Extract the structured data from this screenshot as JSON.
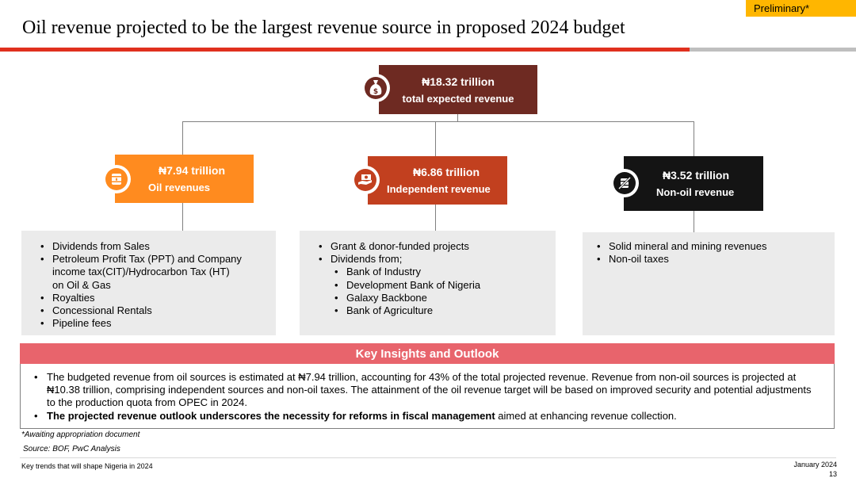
{
  "header": {
    "badge": "Preliminary*",
    "title": "Oil revenue projected to be the largest revenue source in proposed 2024 budget"
  },
  "colors": {
    "total": "#6E2A22",
    "oil": "#FF8B1F",
    "independent": "#C2401F",
    "non_oil": "#141414",
    "insight_header": "#E8646C",
    "accent_red": "#E0301E",
    "badge": "#FFB600"
  },
  "total": {
    "amount": "₦18.32 trillion",
    "label": "total expected revenue",
    "icon": "money-bag-icon"
  },
  "sources": [
    {
      "amount": "₦7.94 trillion",
      "label": "Oil revenues",
      "icon": "oil-barrel-icon",
      "details": [
        "Dividends from Sales",
        "Petroleum Profit Tax (PPT) and Company",
        "income tax(CIT)/Hydrocarbon Tax (HT)",
        "on Oil & Gas",
        "Royalties",
        "Concessional Rentals",
        "Pipeline fees"
      ]
    },
    {
      "amount": "₦6.86 trillion",
      "label": "Independent revenue",
      "icon": "cash-hand-icon",
      "details": [
        "Grant & donor-funded projects",
        "Dividends from;",
        "Bank of Industry",
        "Development Bank  of Nigeria",
        "Galaxy Backbone",
        "Bank of Agriculture"
      ]
    },
    {
      "amount": "₦3.52 trillion",
      "label": "Non-oil revenue",
      "icon": "no-oil-icon",
      "details": [
        "Solid mineral and mining revenues",
        "Non-oil taxes"
      ]
    }
  ],
  "insights": {
    "heading": "Key Insights and Outlook",
    "point1": "The budgeted revenue from oil sources is estimated at ₦7.94 trillion, accounting for 43% of the total projected revenue. Revenue from non-oil sources is projected at ₦10.38 trillion, comprising independent sources and non-oil taxes. The attainment of the oil revenue target will be based on improved security and potential adjustments to the production quota from OPEC in 2024.",
    "point2_bold": "The projected revenue outlook underscores the necessity for reforms in fiscal management",
    "point2_rest": " aimed at enhancing revenue collection."
  },
  "footnotes": {
    "note": "*Awaiting appropriation document",
    "source": "Source: BOF, PwC Analysis"
  },
  "footer": {
    "left": "Key trends that will shape Nigeria in 2024",
    "date": "January 2024",
    "page": "13"
  }
}
